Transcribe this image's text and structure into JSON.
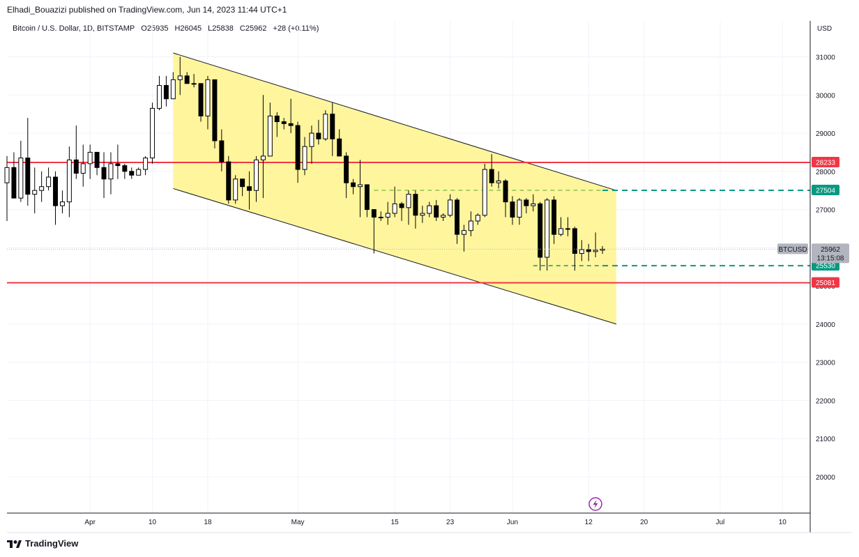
{
  "publisher_line": "Elhadi_Bouazizi published on TradingView.com, Jun 14, 2023 11:44 UTC+1",
  "legend": {
    "title": "Bitcoin / U.S. Dollar, 1D, BITSTAMP",
    "open_label": "O",
    "open": "25935",
    "high_label": "H",
    "high": "26045",
    "low_label": "L",
    "low": "25838",
    "close_label": "C",
    "close": "25962",
    "change": "+28 (+0.11%)"
  },
  "currency": "USD",
  "brand": "TradingView",
  "colors": {
    "channel_fill": "#fff59d",
    "resistance_line": "#f23645",
    "target_line": "#089981",
    "candle_up_fill": "#ffffff",
    "candle_down_fill": "#000000",
    "current_price_tag": "#b2b5be",
    "grid": "#f0f3fa"
  },
  "icons": [
    "tradingview-logo-icon",
    "lightning-icon"
  ],
  "chart_data": {
    "type": "candlestick",
    "symbol": "BTCUSD",
    "interval": "1D",
    "exchange": "BITSTAMP",
    "yaxis": {
      "ticks": [
        20000,
        21000,
        22000,
        23000,
        24000,
        25000,
        26000,
        27000,
        28000,
        29000,
        30000,
        31000
      ],
      "range": [
        19050,
        31940
      ]
    },
    "xaxis": {
      "range": [
        "2023-03-20",
        "2023-07-14"
      ],
      "ticks": [
        {
          "label": "Apr",
          "date": "2023-04-01"
        },
        {
          "label": "10",
          "date": "2023-04-10"
        },
        {
          "label": "18",
          "date": "2023-04-18"
        },
        {
          "label": "May",
          "date": "2023-05-01"
        },
        {
          "label": "15",
          "date": "2023-05-15"
        },
        {
          "label": "23",
          "date": "2023-05-23"
        },
        {
          "label": "Jun",
          "date": "2023-06-01"
        },
        {
          "label": "12",
          "date": "2023-06-12"
        },
        {
          "label": "20",
          "date": "2023-06-20"
        },
        {
          "label": "Jul",
          "date": "2023-07-01"
        },
        {
          "label": "10",
          "date": "2023-07-10"
        }
      ]
    },
    "grid": true,
    "candles": [
      {
        "d": "2023-03-20",
        "o": 27700,
        "h": 28400,
        "l": 26700,
        "c": 28100
      },
      {
        "d": "2023-03-21",
        "o": 28100,
        "h": 28500,
        "l": 27300,
        "c": 27300
      },
      {
        "d": "2023-03-22",
        "o": 27300,
        "h": 28800,
        "l": 27200,
        "c": 28350
      },
      {
        "d": "2023-03-23",
        "o": 28350,
        "h": 29400,
        "l": 27100,
        "c": 27400
      },
      {
        "d": "2023-03-24",
        "o": 27400,
        "h": 28100,
        "l": 26900,
        "c": 27500
      },
      {
        "d": "2023-03-25",
        "o": 27500,
        "h": 28000,
        "l": 27200,
        "c": 27600
      },
      {
        "d": "2023-03-26",
        "o": 27600,
        "h": 28100,
        "l": 27500,
        "c": 27850
      },
      {
        "d": "2023-03-27",
        "o": 27850,
        "h": 28000,
        "l": 26600,
        "c": 27100
      },
      {
        "d": "2023-03-28",
        "o": 27100,
        "h": 27500,
        "l": 26900,
        "c": 27200
      },
      {
        "d": "2023-03-29",
        "o": 27200,
        "h": 28650,
        "l": 26800,
        "c": 28300
      },
      {
        "d": "2023-03-30",
        "o": 28300,
        "h": 29200,
        "l": 27800,
        "c": 27950
      },
      {
        "d": "2023-03-31",
        "o": 27950,
        "h": 28700,
        "l": 27600,
        "c": 28200
      },
      {
        "d": "2023-04-01",
        "o": 28200,
        "h": 28700,
        "l": 27800,
        "c": 28500
      },
      {
        "d": "2023-04-02",
        "o": 28500,
        "h": 28500,
        "l": 27900,
        "c": 28100
      },
      {
        "d": "2023-04-03",
        "o": 28100,
        "h": 28500,
        "l": 27300,
        "c": 27800
      },
      {
        "d": "2023-04-04",
        "o": 27800,
        "h": 28500,
        "l": 27400,
        "c": 28200
      },
      {
        "d": "2023-04-05",
        "o": 28200,
        "h": 28700,
        "l": 27800,
        "c": 28150
      },
      {
        "d": "2023-04-06",
        "o": 28150,
        "h": 28200,
        "l": 27800,
        "c": 28000
      },
      {
        "d": "2023-04-07",
        "o": 28000,
        "h": 28100,
        "l": 27800,
        "c": 27900
      },
      {
        "d": "2023-04-08",
        "o": 27900,
        "h": 28100,
        "l": 27900,
        "c": 28050
      },
      {
        "d": "2023-04-09",
        "o": 28050,
        "h": 28400,
        "l": 27900,
        "c": 28350
      },
      {
        "d": "2023-04-10",
        "o": 28350,
        "h": 29800,
        "l": 28200,
        "c": 29650
      },
      {
        "d": "2023-04-11",
        "o": 29650,
        "h": 30500,
        "l": 29600,
        "c": 30250
      },
      {
        "d": "2023-04-12",
        "o": 30250,
        "h": 30500,
        "l": 29700,
        "c": 29900
      },
      {
        "d": "2023-04-13",
        "o": 29900,
        "h": 30600,
        "l": 29900,
        "c": 30400
      },
      {
        "d": "2023-04-14",
        "o": 30400,
        "h": 31000,
        "l": 30000,
        "c": 30500
      },
      {
        "d": "2023-04-15",
        "o": 30500,
        "h": 30600,
        "l": 30300,
        "c": 30300
      },
      {
        "d": "2023-04-16",
        "o": 30300,
        "h": 30550,
        "l": 30200,
        "c": 30300
      },
      {
        "d": "2023-04-17",
        "o": 30300,
        "h": 30300,
        "l": 29300,
        "c": 29450
      },
      {
        "d": "2023-04-18",
        "o": 29450,
        "h": 30500,
        "l": 29100,
        "c": 30400
      },
      {
        "d": "2023-04-19",
        "o": 30400,
        "h": 30400,
        "l": 28600,
        "c": 28800
      },
      {
        "d": "2023-04-20",
        "o": 28800,
        "h": 29100,
        "l": 28000,
        "c": 28250
      },
      {
        "d": "2023-04-21",
        "o": 28250,
        "h": 28400,
        "l": 27150,
        "c": 27250
      },
      {
        "d": "2023-04-22",
        "o": 27250,
        "h": 27900,
        "l": 27150,
        "c": 27800
      },
      {
        "d": "2023-04-23",
        "o": 27800,
        "h": 27800,
        "l": 27350,
        "c": 27600
      },
      {
        "d": "2023-04-24",
        "o": 27600,
        "h": 28000,
        "l": 27000,
        "c": 27500
      },
      {
        "d": "2023-04-25",
        "o": 27500,
        "h": 28400,
        "l": 27200,
        "c": 28300
      },
      {
        "d": "2023-04-26",
        "o": 28300,
        "h": 30000,
        "l": 27300,
        "c": 28400
      },
      {
        "d": "2023-04-27",
        "o": 28400,
        "h": 29800,
        "l": 28400,
        "c": 29450
      },
      {
        "d": "2023-04-28",
        "o": 29450,
        "h": 29550,
        "l": 28900,
        "c": 29300
      },
      {
        "d": "2023-04-29",
        "o": 29300,
        "h": 29400,
        "l": 29100,
        "c": 29250
      },
      {
        "d": "2023-04-30",
        "o": 29250,
        "h": 29900,
        "l": 29000,
        "c": 29200
      },
      {
        "d": "2023-05-01",
        "o": 29200,
        "h": 29300,
        "l": 27700,
        "c": 28050
      },
      {
        "d": "2023-05-02",
        "o": 28050,
        "h": 28900,
        "l": 27900,
        "c": 28650
      },
      {
        "d": "2023-05-03",
        "o": 28650,
        "h": 29200,
        "l": 28200,
        "c": 29000
      },
      {
        "d": "2023-05-04",
        "o": 29000,
        "h": 29350,
        "l": 28700,
        "c": 28850
      },
      {
        "d": "2023-05-05",
        "o": 28850,
        "h": 29600,
        "l": 28800,
        "c": 29500
      },
      {
        "d": "2023-05-06",
        "o": 29500,
        "h": 29800,
        "l": 28400,
        "c": 28850
      },
      {
        "d": "2023-05-07",
        "o": 28850,
        "h": 29100,
        "l": 28400,
        "c": 28400
      },
      {
        "d": "2023-05-08",
        "o": 28400,
        "h": 28500,
        "l": 27300,
        "c": 27700
      },
      {
        "d": "2023-05-09",
        "o": 27700,
        "h": 27800,
        "l": 27400,
        "c": 27600
      },
      {
        "d": "2023-05-10",
        "o": 27600,
        "h": 28300,
        "l": 26800,
        "c": 27650
      },
      {
        "d": "2023-05-11",
        "o": 27650,
        "h": 27650,
        "l": 26800,
        "c": 27000
      },
      {
        "d": "2023-05-12",
        "o": 27000,
        "h": 27000,
        "l": 25850,
        "c": 26800
      },
      {
        "d": "2023-05-13",
        "o": 26800,
        "h": 26950,
        "l": 26700,
        "c": 26800
      },
      {
        "d": "2023-05-14",
        "o": 26800,
        "h": 27200,
        "l": 26600,
        "c": 26900
      },
      {
        "d": "2023-05-15",
        "o": 26900,
        "h": 27600,
        "l": 26800,
        "c": 27150
      },
      {
        "d": "2023-05-16",
        "o": 27150,
        "h": 27200,
        "l": 26700,
        "c": 27050
      },
      {
        "d": "2023-05-17",
        "o": 27050,
        "h": 27500,
        "l": 26600,
        "c": 27400
      },
      {
        "d": "2023-05-18",
        "o": 27400,
        "h": 27500,
        "l": 26500,
        "c": 26850
      },
      {
        "d": "2023-05-19",
        "o": 26850,
        "h": 27100,
        "l": 26650,
        "c": 26900
      },
      {
        "d": "2023-05-20",
        "o": 26900,
        "h": 27200,
        "l": 26800,
        "c": 27100
      },
      {
        "d": "2023-05-21",
        "o": 27100,
        "h": 27250,
        "l": 26700,
        "c": 26800
      },
      {
        "d": "2023-05-22",
        "o": 26800,
        "h": 26900,
        "l": 26700,
        "c": 26850
      },
      {
        "d": "2023-05-23",
        "o": 26850,
        "h": 27400,
        "l": 26800,
        "c": 27250
      },
      {
        "d": "2023-05-24",
        "o": 27250,
        "h": 27300,
        "l": 26100,
        "c": 26350
      },
      {
        "d": "2023-05-25",
        "o": 26350,
        "h": 26600,
        "l": 25900,
        "c": 26450
      },
      {
        "d": "2023-05-26",
        "o": 26450,
        "h": 26950,
        "l": 26300,
        "c": 26700
      },
      {
        "d": "2023-05-27",
        "o": 26700,
        "h": 26900,
        "l": 26600,
        "c": 26850
      },
      {
        "d": "2023-05-28",
        "o": 26850,
        "h": 28200,
        "l": 26800,
        "c": 28050
      },
      {
        "d": "2023-05-29",
        "o": 28050,
        "h": 28450,
        "l": 27600,
        "c": 27700
      },
      {
        "d": "2023-05-30",
        "o": 27700,
        "h": 28000,
        "l": 27550,
        "c": 27750
      },
      {
        "d": "2023-05-31",
        "o": 27750,
        "h": 27800,
        "l": 26800,
        "c": 27200
      },
      {
        "d": "2023-06-01",
        "o": 27200,
        "h": 27350,
        "l": 26600,
        "c": 26800
      },
      {
        "d": "2023-06-02",
        "o": 26800,
        "h": 27300,
        "l": 26600,
        "c": 27250
      },
      {
        "d": "2023-06-03",
        "o": 27250,
        "h": 27300,
        "l": 26900,
        "c": 27100
      },
      {
        "d": "2023-06-04",
        "o": 27100,
        "h": 27400,
        "l": 26950,
        "c": 27150
      },
      {
        "d": "2023-06-05",
        "o": 27150,
        "h": 27200,
        "l": 25400,
        "c": 25750
      },
      {
        "d": "2023-06-06",
        "o": 25750,
        "h": 27300,
        "l": 25400,
        "c": 27250
      },
      {
        "d": "2023-06-07",
        "o": 27250,
        "h": 27350,
        "l": 26100,
        "c": 26350
      },
      {
        "d": "2023-06-08",
        "o": 26350,
        "h": 26800,
        "l": 26300,
        "c": 26500
      },
      {
        "d": "2023-06-09",
        "o": 26500,
        "h": 26800,
        "l": 26300,
        "c": 26500
      },
      {
        "d": "2023-06-10",
        "o": 26500,
        "h": 26550,
        "l": 25400,
        "c": 25850
      },
      {
        "d": "2023-06-11",
        "o": 25850,
        "h": 26200,
        "l": 25650,
        "c": 25950
      },
      {
        "d": "2023-06-12",
        "o": 25950,
        "h": 26100,
        "l": 25650,
        "c": 25900
      },
      {
        "d": "2023-06-13",
        "o": 25900,
        "h": 26400,
        "l": 25750,
        "c": 25935
      },
      {
        "d": "2023-06-14",
        "o": 25935,
        "h": 26045,
        "l": 25838,
        "c": 25962
      }
    ],
    "price_lines": [
      {
        "value": 28233,
        "label": "28233",
        "style": "solid",
        "color": "#f23645"
      },
      {
        "value": 25081,
        "label": "25081",
        "style": "solid",
        "color": "#f23645"
      },
      {
        "value": 27504,
        "label": "27504",
        "style": "dashed",
        "color": "#089981",
        "start_date": "2023-06-14"
      },
      {
        "value": 25530,
        "label": "25530",
        "style": "dashed",
        "color": "#089981",
        "start_date": "2023-06-14"
      }
    ],
    "dashed_light": [
      {
        "value": 27504,
        "start_date": "2023-05-12",
        "end_date": "2023-06-14",
        "color": "#8bc34a"
      },
      {
        "value": 25530,
        "start_date": "2023-06-04",
        "end_date": "2023-06-14",
        "color": "#089981"
      }
    ],
    "channel": {
      "upper_start": {
        "d": "2023-04-13",
        "v": 31100
      },
      "upper_end": {
        "d": "2023-06-16",
        "v": 27500
      },
      "lower_start": {
        "d": "2023-04-13",
        "v": 27550
      },
      "lower_end": {
        "d": "2023-06-16",
        "v": 24000
      }
    },
    "current_price": {
      "symbol_label": "BTCUSD",
      "value": "25962",
      "countdown": "13:15:08"
    }
  }
}
